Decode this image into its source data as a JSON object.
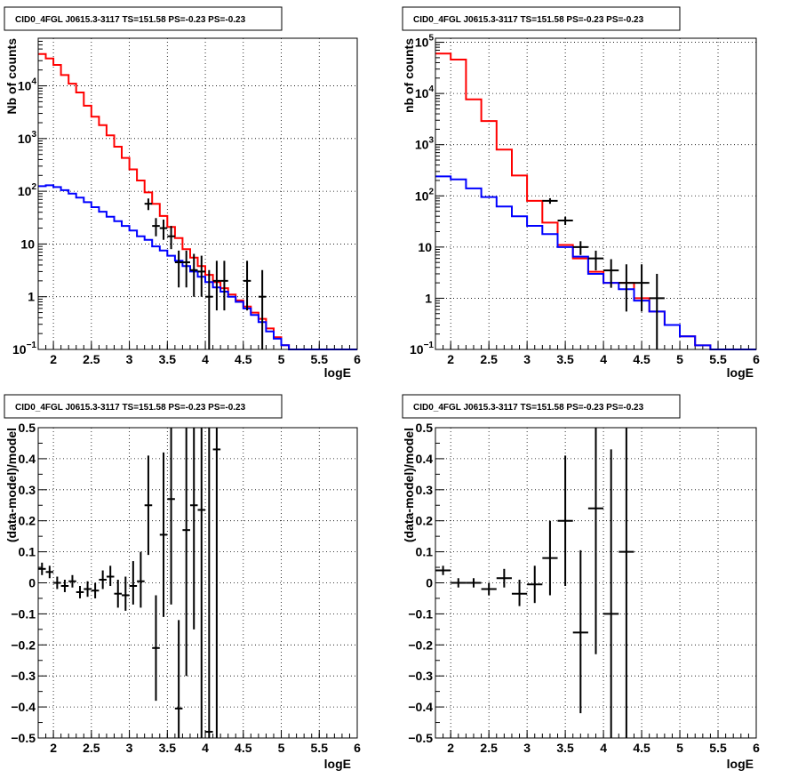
{
  "chart_data": [
    {
      "type": "histogram",
      "title": "CID0_4FGL J0615.3-3117 TS=151.58 PS=-0.23 PS=-0.23",
      "xlabel": "logE",
      "ylabel": "Nb of counts",
      "xlim": [
        1.8,
        6.0
      ],
      "ylim": [
        0.1,
        80000
      ],
      "yscale": "log",
      "grid": true,
      "xticks": [
        "2",
        "2.5",
        "3",
        "3.5",
        "4",
        "4.5",
        "5",
        "5.5",
        "6"
      ],
      "yticks": [
        {
          "base": "10",
          "exp": "−1"
        },
        {
          "base": "1",
          "exp": ""
        },
        {
          "base": "10",
          "exp": ""
        },
        {
          "base": "10",
          "exp": "2"
        },
        {
          "base": "10",
          "exp": "3"
        },
        {
          "base": "10",
          "exp": "4"
        }
      ],
      "bin_edges": [
        1.8,
        1.9,
        2.0,
        2.1,
        2.2,
        2.3,
        2.4,
        2.5,
        2.6,
        2.7,
        2.8,
        2.9,
        3.0,
        3.1,
        3.2,
        3.3,
        3.4,
        3.5,
        3.6,
        3.7,
        3.8,
        3.9,
        4.0,
        4.1,
        4.2,
        4.3,
        4.4,
        4.5,
        4.6,
        4.7,
        4.8,
        4.9,
        5.0,
        5.1,
        5.2,
        5.3,
        5.4,
        5.5,
        5.6,
        5.7,
        5.8,
        5.9,
        6.0
      ],
      "series": [
        {
          "color": "#ff0000",
          "values": [
            40000,
            33000,
            25000,
            16000,
            11000,
            7500,
            4200,
            2600,
            1800,
            1150,
            700,
            430,
            260,
            160,
            95,
            58,
            34,
            21,
            13,
            8,
            5.5,
            3.8,
            2.6,
            1.9,
            1.45,
            1.1,
            0.85,
            0.65,
            0.5,
            0.38,
            0.25,
            0.17,
            0.12,
            0.1,
            0.1,
            0.1,
            0.1,
            0.1,
            0.1,
            0.1,
            0.1,
            0.1
          ]
        },
        {
          "color": "#0000ff",
          "values": [
            125,
            130,
            120,
            105,
            90,
            76,
            62,
            50,
            41,
            33,
            27,
            22,
            18,
            14,
            12,
            9,
            7.5,
            6,
            4.8,
            3.8,
            3,
            2.4,
            1.9,
            1.5,
            1.25,
            1.0,
            0.8,
            0.6,
            0.45,
            0.33,
            0.22,
            0.16,
            0.12,
            0.1,
            0.1,
            0.1,
            0.1,
            0.1,
            0.1,
            0.1,
            0.1,
            0.1
          ]
        }
      ],
      "points": [
        {
          "x": 3.25,
          "y": 58,
          "xerr": 0.05,
          "ylo": 44,
          "yhi": 73
        },
        {
          "x": 3.35,
          "y": 22,
          "xerr": 0.05,
          "ylo": 14,
          "yhi": 31
        },
        {
          "x": 3.45,
          "y": 20,
          "xerr": 0.05,
          "ylo": 12,
          "yhi": 29
        },
        {
          "x": 3.55,
          "y": 14,
          "xerr": 0.05,
          "ylo": 8,
          "yhi": 22
        },
        {
          "x": 3.65,
          "y": 4.5,
          "xerr": 0.05,
          "ylo": 1.5,
          "yhi": 7.5
        },
        {
          "x": 3.75,
          "y": 4.5,
          "xerr": 0.05,
          "ylo": 1.5,
          "yhi": 7.5
        },
        {
          "x": 3.85,
          "y": 3.2,
          "xerr": 0.05,
          "ylo": 1.0,
          "yhi": 6.5
        },
        {
          "x": 3.95,
          "y": 3.0,
          "xerr": 0.05,
          "ylo": 1.0,
          "yhi": 6.0
        },
        {
          "x": 4.05,
          "y": 1.0,
          "xerr": 0.05,
          "ylo": 0.1,
          "yhi": 3.2
        },
        {
          "x": 4.15,
          "y": 2.0,
          "xerr": 0.05,
          "ylo": 0.55,
          "yhi": 4.8
        },
        {
          "x": 4.25,
          "y": 2.0,
          "xerr": 0.05,
          "ylo": 0.55,
          "yhi": 4.8
        },
        {
          "x": 4.55,
          "y": 2.0,
          "xerr": 0.05,
          "ylo": 0.55,
          "yhi": 4.8
        },
        {
          "x": 4.75,
          "y": 1.0,
          "xerr": 0.05,
          "ylo": 0.1,
          "yhi": 3.2
        }
      ]
    },
    {
      "type": "histogram",
      "title": "CID0_4FGL J0615.3-3117 TS=151.58 PS=-0.23 PS=-0.23",
      "xlabel": "logE",
      "ylabel": "nb of counts",
      "xlim": [
        1.8,
        6.0
      ],
      "ylim": [
        0.1,
        120000
      ],
      "yscale": "log",
      "grid": true,
      "xticks": [
        "2",
        "2.5",
        "3",
        "3.5",
        "4",
        "4.5",
        "5",
        "5.5",
        "6"
      ],
      "yticks": [
        {
          "base": "10",
          "exp": "−1"
        },
        {
          "base": "1",
          "exp": ""
        },
        {
          "base": "10",
          "exp": ""
        },
        {
          "base": "10",
          "exp": "2"
        },
        {
          "base": "10",
          "exp": "3"
        },
        {
          "base": "10",
          "exp": "4"
        },
        {
          "base": "10",
          "exp": "5"
        }
      ],
      "bin_edges": [
        1.8,
        2.0,
        2.2,
        2.4,
        2.6,
        2.8,
        3.0,
        3.2,
        3.4,
        3.6,
        3.8,
        4.0,
        4.2,
        4.4,
        4.6,
        4.8,
        5.0,
        5.2,
        5.4,
        5.6,
        5.8,
        6.0
      ],
      "series": [
        {
          "color": "#ff0000",
          "values": [
            60000,
            46000,
            7700,
            2900,
            800,
            250,
            80,
            30,
            11,
            6,
            3.3,
            2.0,
            2.0,
            1.0,
            0.55,
            0.3,
            0.18,
            0.12,
            0.1,
            0.1,
            0.1
          ]
        },
        {
          "color": "#0000ff",
          "values": [
            240,
            210,
            140,
            95,
            62,
            40,
            26,
            18,
            10,
            6.5,
            3.0,
            2.0,
            1.5,
            0.9,
            0.55,
            0.3,
            0.18,
            0.12,
            0.1,
            0.1,
            0.1
          ]
        }
      ],
      "points": [
        {
          "x": 3.3,
          "y": 80,
          "xerr": 0.1,
          "ylo": 70,
          "yhi": 90
        },
        {
          "x": 3.5,
          "y": 33,
          "xerr": 0.1,
          "ylo": 27,
          "yhi": 39
        },
        {
          "x": 3.7,
          "y": 10,
          "xerr": 0.1,
          "ylo": 7,
          "yhi": 13
        },
        {
          "x": 3.9,
          "y": 6,
          "xerr": 0.1,
          "ylo": 3.5,
          "yhi": 8.5
        },
        {
          "x": 4.1,
          "y": 3.5,
          "xerr": 0.1,
          "ylo": 1.6,
          "yhi": 5.8
        },
        {
          "x": 4.3,
          "y": 2.0,
          "xerr": 0.1,
          "ylo": 0.55,
          "yhi": 4.6
        },
        {
          "x": 4.5,
          "y": 2.0,
          "xerr": 0.1,
          "ylo": 0.55,
          "yhi": 4.6
        },
        {
          "x": 4.7,
          "y": 1.0,
          "xerr": 0.1,
          "ylo": 0.1,
          "yhi": 3.0
        }
      ]
    },
    {
      "type": "scatter",
      "title": "CID0_4FGL J0615.3-3117 TS=151.58 PS=-0.23 PS=-0.23",
      "xlabel": "logE",
      "ylabel": "(data-model)/model",
      "xlim": [
        1.8,
        6.0
      ],
      "ylim": [
        -0.5,
        0.5
      ],
      "grid": true,
      "xticks": [
        "2",
        "2.5",
        "3",
        "3.5",
        "4",
        "4.5",
        "5",
        "5.5",
        "6"
      ],
      "yticks": [
        "−0.5",
        "−0.4",
        "−0.3",
        "−0.2",
        "−0.1",
        "0",
        "0.1",
        "0.2",
        "0.3",
        "0.4",
        "0.5"
      ],
      "points": [
        {
          "x": 1.85,
          "y": 0.045,
          "xerr": 0.05,
          "ylo": 0.025,
          "yhi": 0.065
        },
        {
          "x": 1.95,
          "y": 0.035,
          "xerr": 0.05,
          "ylo": 0.015,
          "yhi": 0.055
        },
        {
          "x": 2.05,
          "y": 0.0,
          "xerr": 0.05,
          "ylo": -0.02,
          "yhi": 0.02
        },
        {
          "x": 2.15,
          "y": -0.01,
          "xerr": 0.05,
          "ylo": -0.03,
          "yhi": 0.01
        },
        {
          "x": 2.25,
          "y": 0.005,
          "xerr": 0.05,
          "ylo": -0.015,
          "yhi": 0.025
        },
        {
          "x": 2.35,
          "y": -0.03,
          "xerr": 0.05,
          "ylo": -0.05,
          "yhi": -0.01
        },
        {
          "x": 2.45,
          "y": -0.02,
          "xerr": 0.05,
          "ylo": -0.045,
          "yhi": 0.005
        },
        {
          "x": 2.55,
          "y": -0.025,
          "xerr": 0.05,
          "ylo": -0.05,
          "yhi": 0.0
        },
        {
          "x": 2.65,
          "y": 0.01,
          "xerr": 0.05,
          "ylo": -0.02,
          "yhi": 0.04
        },
        {
          "x": 2.75,
          "y": 0.02,
          "xerr": 0.05,
          "ylo": -0.01,
          "yhi": 0.055
        },
        {
          "x": 2.85,
          "y": -0.035,
          "xerr": 0.05,
          "ylo": -0.08,
          "yhi": 0.01
        },
        {
          "x": 2.95,
          "y": -0.04,
          "xerr": 0.05,
          "ylo": -0.09,
          "yhi": 0.02
        },
        {
          "x": 3.05,
          "y": -0.01,
          "xerr": 0.05,
          "ylo": -0.07,
          "yhi": 0.07
        },
        {
          "x": 3.15,
          "y": 0.005,
          "xerr": 0.05,
          "ylo": -0.08,
          "yhi": 0.1
        },
        {
          "x": 3.25,
          "y": 0.25,
          "xerr": 0.05,
          "ylo": 0.09,
          "yhi": 0.41
        },
        {
          "x": 3.35,
          "y": -0.21,
          "xerr": 0.05,
          "ylo": -0.38,
          "yhi": -0.04
        },
        {
          "x": 3.45,
          "y": 0.155,
          "xerr": 0.05,
          "ylo": -0.11,
          "yhi": 0.42
        },
        {
          "x": 3.55,
          "y": 0.27,
          "xerr": 0.05,
          "ylo": -0.07,
          "yhi": 0.5
        },
        {
          "x": 3.65,
          "y": -0.405,
          "xerr": 0.05,
          "ylo": -0.5,
          "yhi": -0.12
        },
        {
          "x": 3.75,
          "y": 0.17,
          "xerr": 0.05,
          "ylo": -0.3,
          "yhi": 0.5
        },
        {
          "x": 3.85,
          "y": 0.25,
          "xerr": 0.05,
          "ylo": -0.15,
          "yhi": 0.5
        },
        {
          "x": 3.95,
          "y": 0.235,
          "xerr": 0.05,
          "ylo": -0.5,
          "yhi": 0.5
        },
        {
          "x": 4.05,
          "y": -0.48,
          "xerr": 0.05,
          "ylo": -0.5,
          "yhi": 0.5
        },
        {
          "x": 4.15,
          "y": 0.43,
          "xerr": 0.05,
          "ylo": -0.5,
          "yhi": 0.5
        }
      ]
    },
    {
      "type": "scatter",
      "title": "CID0_4FGL J0615.3-3117 TS=151.58 PS=-0.23 PS=-0.23",
      "xlabel": "logE",
      "ylabel": "(data-model)/model",
      "xlim": [
        1.8,
        6.0
      ],
      "ylim": [
        -0.5,
        0.5
      ],
      "grid": true,
      "xticks": [
        "2",
        "2.5",
        "3",
        "3.5",
        "4",
        "4.5",
        "5",
        "5.5",
        "6"
      ],
      "yticks": [
        "−0.5",
        "−0.4",
        "−0.3",
        "−0.2",
        "−0.1",
        "0",
        "0.1",
        "0.2",
        "0.3",
        "0.4",
        "0.5"
      ],
      "points": [
        {
          "x": 1.9,
          "y": 0.04,
          "xerr": 0.1,
          "ylo": 0.025,
          "yhi": 0.055
        },
        {
          "x": 2.1,
          "y": 0.0,
          "xerr": 0.1,
          "ylo": -0.015,
          "yhi": 0.015
        },
        {
          "x": 2.3,
          "y": 0.0,
          "xerr": 0.1,
          "ylo": -0.015,
          "yhi": 0.015
        },
        {
          "x": 2.5,
          "y": -0.02,
          "xerr": 0.1,
          "ylo": -0.04,
          "yhi": 0.0
        },
        {
          "x": 2.7,
          "y": 0.015,
          "xerr": 0.1,
          "ylo": -0.015,
          "yhi": 0.045
        },
        {
          "x": 2.9,
          "y": -0.035,
          "xerr": 0.1,
          "ylo": -0.075,
          "yhi": 0.01
        },
        {
          "x": 3.1,
          "y": -0.005,
          "xerr": 0.1,
          "ylo": -0.065,
          "yhi": 0.055
        },
        {
          "x": 3.3,
          "y": 0.08,
          "xerr": 0.1,
          "ylo": -0.04,
          "yhi": 0.2
        },
        {
          "x": 3.5,
          "y": 0.2,
          "xerr": 0.1,
          "ylo": -0.01,
          "yhi": 0.41
        },
        {
          "x": 3.7,
          "y": -0.16,
          "xerr": 0.1,
          "ylo": -0.42,
          "yhi": 0.105
        },
        {
          "x": 3.9,
          "y": 0.24,
          "xerr": 0.1,
          "ylo": -0.23,
          "yhi": 0.5
        },
        {
          "x": 4.1,
          "y": -0.1,
          "xerr": 0.1,
          "ylo": -0.5,
          "yhi": 0.43
        },
        {
          "x": 4.3,
          "y": 0.1,
          "xerr": 0.1,
          "ylo": -0.5,
          "yhi": 0.5
        }
      ]
    }
  ]
}
